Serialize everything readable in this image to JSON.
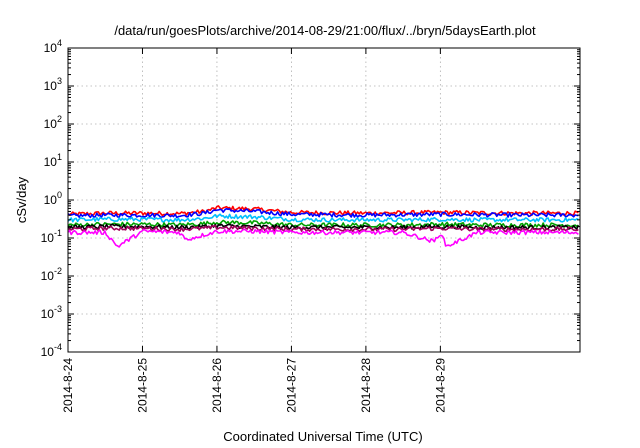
{
  "chart_data": {
    "type": "line",
    "title": "/data/run/goesPlots/archive/2014-08-29/21:00/flux/../bryn/5daysEarth.plot",
    "xlabel": "Coordinated Universal Time (UTC)",
    "ylabel": "cSv/day",
    "yscale": "log",
    "ylim": [
      0.0001,
      10000
    ],
    "xlim": [
      "2014-08-24",
      "2014-08-30T21:00"
    ],
    "y_ticks": [
      {
        "value": 0.0001,
        "base": "10",
        "exp": "-4"
      },
      {
        "value": 0.001,
        "base": "10",
        "exp": "-3"
      },
      {
        "value": 0.01,
        "base": "10",
        "exp": "-2"
      },
      {
        "value": 0.1,
        "base": "10",
        "exp": "-1"
      },
      {
        "value": 1,
        "base": "10",
        "exp": "0"
      },
      {
        "value": 10,
        "base": "10",
        "exp": "1"
      },
      {
        "value": 100,
        "base": "10",
        "exp": "2"
      },
      {
        "value": 1000,
        "base": "10",
        "exp": "3"
      },
      {
        "value": 10000,
        "base": "10",
        "exp": "4"
      }
    ],
    "x_ticks": [
      {
        "value": "2014-08-24",
        "label": "2014-8-24"
      },
      {
        "value": "2014-08-25",
        "label": "2014-8-25"
      },
      {
        "value": "2014-08-26",
        "label": "2014-8-26"
      },
      {
        "value": "2014-08-27",
        "label": "2014-8-27"
      },
      {
        "value": "2014-08-28",
        "label": "2014-8-28"
      },
      {
        "value": "2014-08-29",
        "label": "2014-8-29"
      }
    ],
    "grid": true,
    "legend": "none",
    "series": [
      {
        "color": "#ff0000",
        "values": [
          {
            "x": "2014-08-24T00:00",
            "y": 0.42
          },
          {
            "x": "2014-08-24T12:00",
            "y": 0.45
          },
          {
            "x": "2014-08-25T00:00",
            "y": 0.45
          },
          {
            "x": "2014-08-25T12:00",
            "y": 0.44
          },
          {
            "x": "2014-08-25T20:00",
            "y": 0.5
          },
          {
            "x": "2014-08-26T00:00",
            "y": 0.62
          },
          {
            "x": "2014-08-26T12:00",
            "y": 0.58
          },
          {
            "x": "2014-08-27T00:00",
            "y": 0.47
          },
          {
            "x": "2014-08-27T12:00",
            "y": 0.46
          },
          {
            "x": "2014-08-28T00:00",
            "y": 0.45
          },
          {
            "x": "2014-08-28T12:00",
            "y": 0.46
          },
          {
            "x": "2014-08-29T00:00",
            "y": 0.47
          },
          {
            "x": "2014-08-29T12:00",
            "y": 0.46
          },
          {
            "x": "2014-08-30T00:00",
            "y": 0.45
          },
          {
            "x": "2014-08-30T21:00",
            "y": 0.45
          }
        ]
      },
      {
        "color": "#0000ff",
        "values": [
          {
            "x": "2014-08-24T00:00",
            "y": 0.38
          },
          {
            "x": "2014-08-24T12:00",
            "y": 0.4
          },
          {
            "x": "2014-08-25T00:00",
            "y": 0.4
          },
          {
            "x": "2014-08-25T12:00",
            "y": 0.39
          },
          {
            "x": "2014-08-25T20:00",
            "y": 0.45
          },
          {
            "x": "2014-08-26T00:00",
            "y": 0.55
          },
          {
            "x": "2014-08-26T12:00",
            "y": 0.5
          },
          {
            "x": "2014-08-27T00:00",
            "y": 0.42
          },
          {
            "x": "2014-08-27T12:00",
            "y": 0.41
          },
          {
            "x": "2014-08-28T00:00",
            "y": 0.4
          },
          {
            "x": "2014-08-28T12:00",
            "y": 0.41
          },
          {
            "x": "2014-08-29T00:00",
            "y": 0.42
          },
          {
            "x": "2014-08-29T12:00",
            "y": 0.41
          },
          {
            "x": "2014-08-30T00:00",
            "y": 0.4
          },
          {
            "x": "2014-08-30T21:00",
            "y": 0.4
          }
        ]
      },
      {
        "color": "#00bfff",
        "values": [
          {
            "x": "2014-08-24T00:00",
            "y": 0.3
          },
          {
            "x": "2014-08-24T12:00",
            "y": 0.31
          },
          {
            "x": "2014-08-25T00:00",
            "y": 0.31
          },
          {
            "x": "2014-08-25T12:00",
            "y": 0.3
          },
          {
            "x": "2014-08-25T20:00",
            "y": 0.33
          },
          {
            "x": "2014-08-26T00:00",
            "y": 0.38
          },
          {
            "x": "2014-08-26T12:00",
            "y": 0.36
          },
          {
            "x": "2014-08-27T00:00",
            "y": 0.31
          },
          {
            "x": "2014-08-27T12:00",
            "y": 0.3
          },
          {
            "x": "2014-08-28T00:00",
            "y": 0.3
          },
          {
            "x": "2014-08-28T12:00",
            "y": 0.3
          },
          {
            "x": "2014-08-29T00:00",
            "y": 0.31
          },
          {
            "x": "2014-08-29T12:00",
            "y": 0.3
          },
          {
            "x": "2014-08-30T00:00",
            "y": 0.3
          },
          {
            "x": "2014-08-30T21:00",
            "y": 0.3
          }
        ]
      },
      {
        "color": "#00a000",
        "values": [
          {
            "x": "2014-08-24T00:00",
            "y": 0.22
          },
          {
            "x": "2014-08-24T12:00",
            "y": 0.23
          },
          {
            "x": "2014-08-25T00:00",
            "y": 0.23
          },
          {
            "x": "2014-08-25T12:00",
            "y": 0.22
          },
          {
            "x": "2014-08-25T20:00",
            "y": 0.24
          },
          {
            "x": "2014-08-26T00:00",
            "y": 0.26
          },
          {
            "x": "2014-08-26T12:00",
            "y": 0.25
          },
          {
            "x": "2014-08-27T00:00",
            "y": 0.22
          },
          {
            "x": "2014-08-27T12:00",
            "y": 0.22
          },
          {
            "x": "2014-08-28T00:00",
            "y": 0.22
          },
          {
            "x": "2014-08-28T12:00",
            "y": 0.22
          },
          {
            "x": "2014-08-29T00:00",
            "y": 0.23
          },
          {
            "x": "2014-08-29T12:00",
            "y": 0.22
          },
          {
            "x": "2014-08-30T00:00",
            "y": 0.22
          },
          {
            "x": "2014-08-30T21:00",
            "y": 0.22
          }
        ]
      },
      {
        "color": "#000000",
        "values": [
          {
            "x": "2014-08-24T00:00",
            "y": 0.19
          },
          {
            "x": "2014-08-24T12:00",
            "y": 0.2
          },
          {
            "x": "2014-08-25T00:00",
            "y": 0.2
          },
          {
            "x": "2014-08-25T12:00",
            "y": 0.19
          },
          {
            "x": "2014-08-25T20:00",
            "y": 0.2
          },
          {
            "x": "2014-08-26T00:00",
            "y": 0.21
          },
          {
            "x": "2014-08-26T12:00",
            "y": 0.2
          },
          {
            "x": "2014-08-27T00:00",
            "y": 0.19
          },
          {
            "x": "2014-08-27T12:00",
            "y": 0.19
          },
          {
            "x": "2014-08-28T00:00",
            "y": 0.19
          },
          {
            "x": "2014-08-28T12:00",
            "y": 0.19
          },
          {
            "x": "2014-08-29T00:00",
            "y": 0.2
          },
          {
            "x": "2014-08-29T12:00",
            "y": 0.19
          },
          {
            "x": "2014-08-30T00:00",
            "y": 0.19
          },
          {
            "x": "2014-08-30T21:00",
            "y": 0.19
          }
        ]
      },
      {
        "color": "#a0005a",
        "values": [
          {
            "x": "2014-08-24T00:00",
            "y": 0.17
          },
          {
            "x": "2014-08-24T12:00",
            "y": 0.18
          },
          {
            "x": "2014-08-25T00:00",
            "y": 0.18
          },
          {
            "x": "2014-08-25T12:00",
            "y": 0.17
          },
          {
            "x": "2014-08-25T20:00",
            "y": 0.18
          },
          {
            "x": "2014-08-26T00:00",
            "y": 0.19
          },
          {
            "x": "2014-08-26T12:00",
            "y": 0.18
          },
          {
            "x": "2014-08-27T00:00",
            "y": 0.17
          },
          {
            "x": "2014-08-27T12:00",
            "y": 0.17
          },
          {
            "x": "2014-08-28T00:00",
            "y": 0.17
          },
          {
            "x": "2014-08-28T12:00",
            "y": 0.17
          },
          {
            "x": "2014-08-29T00:00",
            "y": 0.18
          },
          {
            "x": "2014-08-29T12:00",
            "y": 0.17
          },
          {
            "x": "2014-08-30T00:00",
            "y": 0.17
          },
          {
            "x": "2014-08-30T21:00",
            "y": 0.17
          }
        ]
      },
      {
        "color": "#ff00ff",
        "values": [
          {
            "x": "2014-08-24T00:00",
            "y": 0.14
          },
          {
            "x": "2014-08-24T12:00",
            "y": 0.14
          },
          {
            "x": "2014-08-24T16:00",
            "y": 0.06
          },
          {
            "x": "2014-08-25T00:00",
            "y": 0.15
          },
          {
            "x": "2014-08-25T12:00",
            "y": 0.14
          },
          {
            "x": "2014-08-25T14:00",
            "y": 0.09
          },
          {
            "x": "2014-08-26T00:00",
            "y": 0.15
          },
          {
            "x": "2014-08-26T12:00",
            "y": 0.15
          },
          {
            "x": "2014-08-27T00:00",
            "y": 0.14
          },
          {
            "x": "2014-08-27T12:00",
            "y": 0.14
          },
          {
            "x": "2014-08-28T00:00",
            "y": 0.14
          },
          {
            "x": "2014-08-28T12:00",
            "y": 0.14
          },
          {
            "x": "2014-08-28T22:00",
            "y": 0.08
          },
          {
            "x": "2014-08-29T00:00",
            "y": 0.14
          },
          {
            "x": "2014-08-29T02:00",
            "y": 0.06
          },
          {
            "x": "2014-08-29T12:00",
            "y": 0.14
          },
          {
            "x": "2014-08-30T00:00",
            "y": 0.14
          },
          {
            "x": "2014-08-30T21:00",
            "y": 0.14
          }
        ]
      }
    ]
  }
}
